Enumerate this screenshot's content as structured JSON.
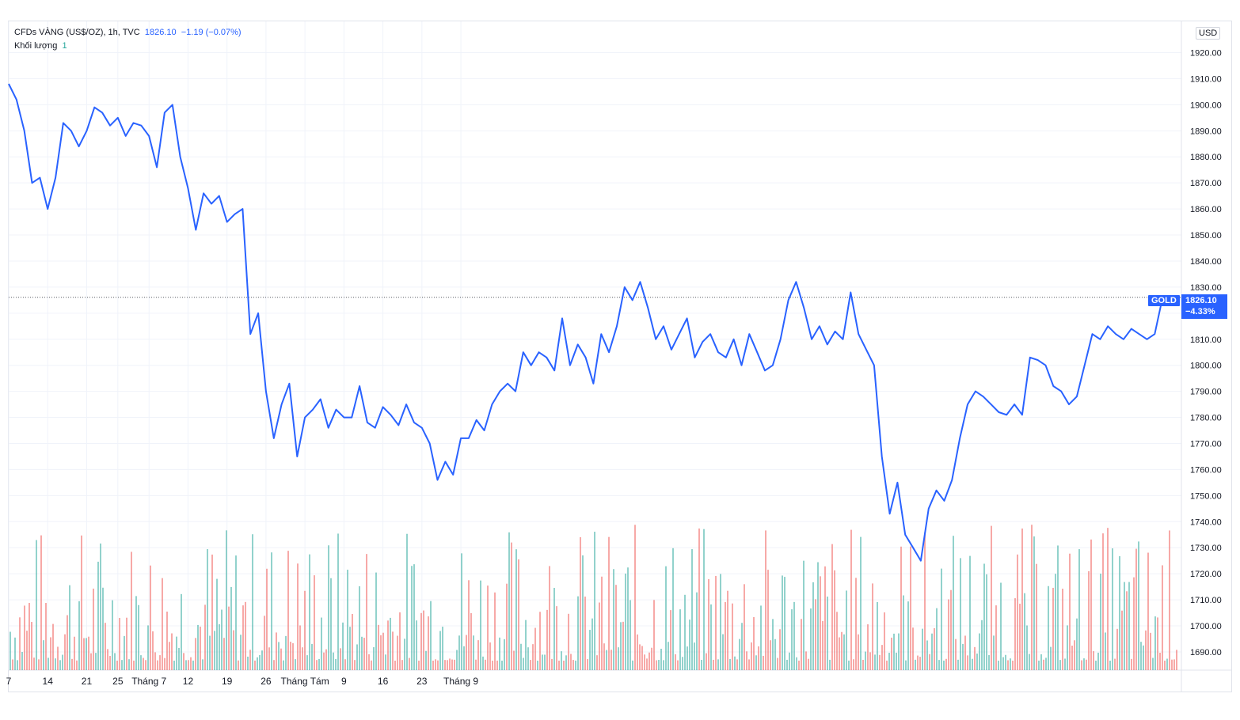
{
  "legend": {
    "symbol": "CFDs VÀNG (US$/OZ), 1h, TVC",
    "last": "1826.10",
    "change": "−1.19 (−0.07%)",
    "volume_label": "Khối lượng",
    "volume_value": "1"
  },
  "currency_button": "USD",
  "symbol_tag": "GOLD",
  "price_tag": {
    "price": "1826.10",
    "percent": "−4.33%"
  },
  "colors": {
    "line": "#2962ff",
    "volume_up": "#26a69a",
    "volume_down": "#ef5350",
    "grid": "#f0f3fa",
    "axis_text": "#131722"
  },
  "chart_data": {
    "type": "line",
    "title": "CFDs VÀNG (US$/OZ), 1h, TVC",
    "xlabel": "",
    "ylabel": "",
    "ylim": [
      1683,
      1932
    ],
    "y_ticks": [
      1690,
      1700,
      1710,
      1720,
      1730,
      1740,
      1750,
      1760,
      1770,
      1780,
      1790,
      1800,
      1810,
      1820,
      1830,
      1840,
      1850,
      1860,
      1870,
      1880,
      1890,
      1900,
      1910,
      1920
    ],
    "x_ticks": [
      "7",
      "14",
      "21",
      "25",
      "Tháng 7",
      "12",
      "19",
      "26",
      "Tháng Tám",
      "9",
      "16",
      "23",
      "Tháng 9"
    ],
    "x_tick_index": [
      0,
      5,
      10,
      14,
      18,
      23,
      28,
      33,
      38,
      43,
      48,
      53,
      58
    ],
    "series": [
      {
        "values": [
          1908,
          1902,
          1890,
          1870,
          1872,
          1860,
          1872,
          1893,
          1890,
          1884,
          1890,
          1899,
          1897,
          1892,
          1895,
          1888,
          1893,
          1892,
          1888,
          1876,
          1897,
          1900,
          1880,
          1868,
          1852,
          1866,
          1862,
          1865,
          1855,
          1858,
          1860,
          1812,
          1820,
          1790,
          1772,
          1785,
          1793,
          1765,
          1780,
          1783,
          1787,
          1776,
          1783,
          1780,
          1780,
          1792,
          1778,
          1776,
          1784,
          1781,
          1777,
          1785,
          1778,
          1776,
          1770,
          1756,
          1763,
          1758,
          1772,
          1772,
          1779,
          1775,
          1785,
          1790,
          1793,
          1790,
          1805,
          1800,
          1805,
          1803,
          1798,
          1818,
          1800,
          1808,
          1803,
          1793,
          1812,
          1805,
          1815,
          1830,
          1825,
          1832,
          1822,
          1810,
          1815,
          1806,
          1812,
          1818,
          1803,
          1809,
          1812,
          1805,
          1803,
          1810,
          1800,
          1812,
          1805,
          1798,
          1800,
          1810,
          1825,
          1832,
          1822,
          1810,
          1815,
          1808,
          1813,
          1810,
          1828,
          1812,
          1806,
          1800,
          1765,
          1743,
          1755,
          1735,
          1730,
          1725,
          1745,
          1752,
          1748,
          1756,
          1772,
          1785,
          1790,
          1788,
          1785,
          1782,
          1781,
          1785,
          1781,
          1803,
          1802,
          1800,
          1792,
          1790,
          1785,
          1788,
          1800,
          1812,
          1810,
          1815,
          1812,
          1810,
          1814,
          1812,
          1810,
          1812,
          1826,
          1826
        ]
      }
    ],
    "volume": {
      "label": "Khối lượng",
      "last": 1
    },
    "last_price": 1826.1,
    "grid": true
  }
}
